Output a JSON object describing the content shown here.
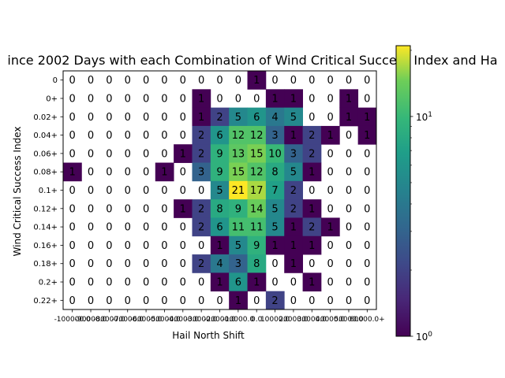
{
  "chart_data": {
    "type": "heatmap",
    "title": "ince 2002 Days with each Combination of Wind Critical Success Index and Ha",
    "xlabel": "Hail North Shift",
    "ylabel": "Wind Critical Success Index",
    "x_tick_labels": [
      "-100000.0",
      "-90000.0",
      "-80000.0",
      "-70000.0",
      "-60000.0",
      "-50000.0",
      "-40000.0",
      "-30000.0",
      "-20000.0",
      "-10000.0",
      "0.0",
      "10000.0",
      "20000.0",
      "30000.0",
      "40000.0",
      "50000.0",
      "60000.0+"
    ],
    "y_tick_labels": [
      "0",
      "0+",
      "0.02+",
      "0.04+",
      "0.06+",
      "0.08+",
      "0.1+",
      "0.12+",
      "0.14+",
      "0.16+",
      "0.18+",
      "0.2+",
      "0.22+"
    ],
    "values": [
      [
        0,
        0,
        0,
        0,
        0,
        0,
        0,
        0,
        0,
        0,
        1,
        0,
        0,
        0,
        0,
        0,
        0
      ],
      [
        0,
        0,
        0,
        0,
        0,
        0,
        0,
        1,
        0,
        0,
        0,
        1,
        1,
        0,
        0,
        1,
        0
      ],
      [
        0,
        0,
        0,
        0,
        0,
        0,
        0,
        1,
        2,
        5,
        6,
        4,
        5,
        0,
        0,
        1,
        1
      ],
      [
        0,
        0,
        0,
        0,
        0,
        0,
        0,
        2,
        6,
        12,
        12,
        3,
        1,
        2,
        1,
        0,
        1
      ],
      [
        0,
        0,
        0,
        0,
        0,
        0,
        1,
        2,
        9,
        13,
        15,
        10,
        3,
        2,
        0,
        0,
        0
      ],
      [
        1,
        0,
        0,
        0,
        0,
        1,
        0,
        3,
        9,
        15,
        12,
        8,
        5,
        1,
        0,
        0,
        0
      ],
      [
        0,
        0,
        0,
        0,
        0,
        0,
        0,
        0,
        5,
        21,
        17,
        7,
        2,
        0,
        0,
        0,
        0
      ],
      [
        0,
        0,
        0,
        0,
        0,
        0,
        1,
        2,
        8,
        9,
        14,
        5,
        2,
        1,
        0,
        0,
        0
      ],
      [
        0,
        0,
        0,
        0,
        0,
        0,
        0,
        2,
        6,
        11,
        11,
        5,
        1,
        2,
        1,
        0,
        0
      ],
      [
        0,
        0,
        0,
        0,
        0,
        0,
        0,
        0,
        1,
        5,
        9,
        1,
        1,
        1,
        0,
        0,
        0
      ],
      [
        0,
        0,
        0,
        0,
        0,
        0,
        0,
        2,
        4,
        3,
        8,
        0,
        1,
        0,
        0,
        0,
        0
      ],
      [
        0,
        0,
        0,
        0,
        0,
        0,
        0,
        0,
        1,
        6,
        1,
        0,
        0,
        1,
        0,
        0,
        0
      ],
      [
        0,
        0,
        0,
        0,
        0,
        0,
        0,
        0,
        0,
        1,
        0,
        2,
        0,
        0,
        0,
        0,
        0
      ]
    ],
    "colorbar": {
      "scale": "log",
      "colormap": "viridis",
      "range": [
        1,
        21
      ],
      "tick_labels": [
        "10^0",
        "10^1"
      ],
      "zero_cells": "uncolored"
    },
    "grid": false
  }
}
